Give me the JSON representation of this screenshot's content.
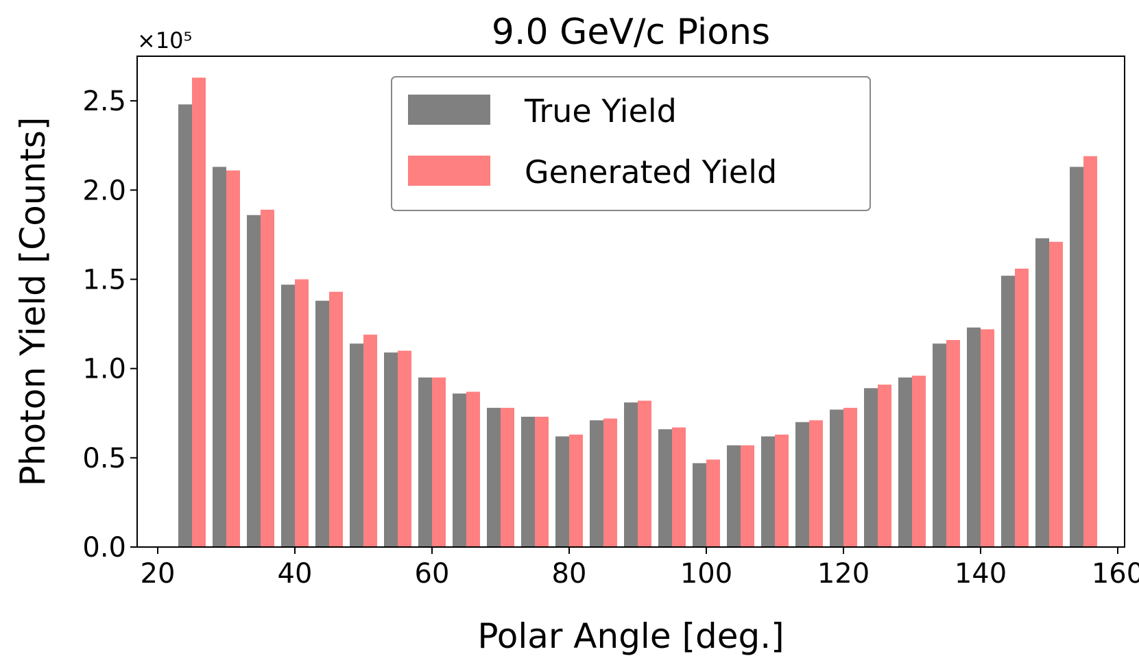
{
  "chart_data": {
    "type": "bar",
    "title": "9.0 GeV/c Pions",
    "xlabel": "Polar Angle [deg.]",
    "ylabel": "Photon Yield [Counts]",
    "y_multiplier_label": "×10⁵",
    "xlim": [
      17,
      161
    ],
    "ylim": [
      0,
      2.75
    ],
    "xticks": [
      20,
      40,
      60,
      80,
      100,
      120,
      140,
      160
    ],
    "xtick_labels": [
      "20",
      "40",
      "60",
      "80",
      "100",
      "120",
      "140",
      "160"
    ],
    "yticks": [
      0.0,
      0.5,
      1.0,
      1.5,
      2.0,
      2.5
    ],
    "ytick_labels": [
      "0.0",
      "0.5",
      "1.0",
      "1.5",
      "2.0",
      "2.5"
    ],
    "grid": false,
    "legend_position": "top-center",
    "x": [
      25,
      30,
      35,
      40,
      45,
      50,
      55,
      60,
      65,
      70,
      75,
      80,
      85,
      90,
      95,
      100,
      105,
      110,
      115,
      120,
      125,
      130,
      135,
      140,
      145,
      150,
      155
    ],
    "series": [
      {
        "name": "True Yield",
        "color": "#808080",
        "values": [
          2.48,
          2.13,
          1.86,
          1.47,
          1.38,
          1.14,
          1.09,
          0.95,
          0.86,
          0.78,
          0.73,
          0.62,
          0.71,
          0.81,
          0.66,
          0.47,
          0.57,
          0.62,
          0.7,
          0.77,
          0.89,
          0.95,
          1.14,
          1.23,
          1.52,
          1.73,
          2.13
        ]
      },
      {
        "name": "Generated Yield",
        "color": "#FF8080",
        "values": [
          2.63,
          2.11,
          1.89,
          1.5,
          1.43,
          1.19,
          1.1,
          0.95,
          0.87,
          0.78,
          0.73,
          0.63,
          0.72,
          0.82,
          0.67,
          0.49,
          0.57,
          0.63,
          0.71,
          0.78,
          0.91,
          0.96,
          1.16,
          1.22,
          1.56,
          1.71,
          2.19
        ]
      }
    ]
  }
}
